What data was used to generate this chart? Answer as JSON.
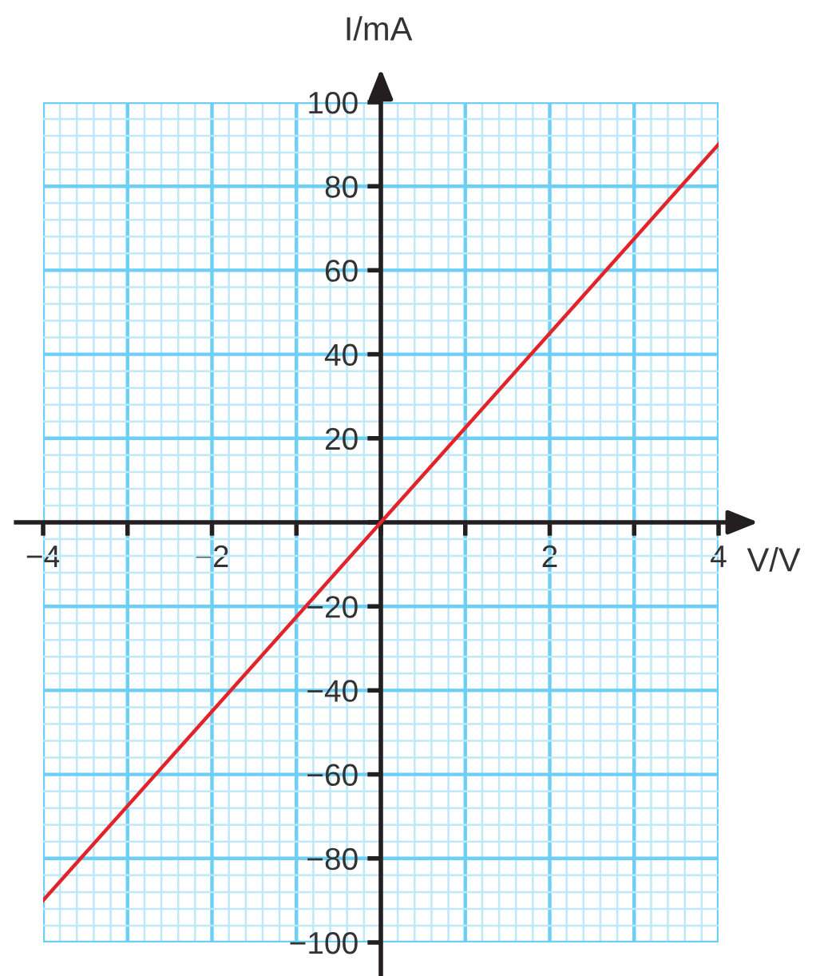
{
  "chart_data": {
    "type": "line",
    "xlabel": "V/V",
    "ylabel": "I/mA",
    "x": [
      -4,
      0,
      4
    ],
    "series": [
      {
        "color": "#e3232a",
        "values": [
          -90,
          0,
          90
        ]
      }
    ],
    "xlim": [
      -4,
      4
    ],
    "ylim": [
      -100,
      100
    ],
    "xticks": [
      {
        "value": -4,
        "label": "−4"
      },
      {
        "value": -3.8,
        "label": null
      },
      {
        "value": -3.6,
        "label": null
      },
      {
        "value": -3.4,
        "label": null
      },
      {
        "value": -3.2,
        "label": null
      },
      {
        "value": -3,
        "label": null
      },
      {
        "value": -2.8,
        "label": null
      },
      {
        "value": -2.6,
        "label": null
      },
      {
        "value": -2.4,
        "label": null
      },
      {
        "value": -2.2,
        "label": null
      },
      {
        "value": -2,
        "label": "−2"
      },
      {
        "value": -1.8,
        "label": null
      },
      {
        "value": -1.6,
        "label": null
      },
      {
        "value": -1.4,
        "label": null
      },
      {
        "value": -1.2,
        "label": null
      },
      {
        "value": -1,
        "label": null
      },
      {
        "value": -0.8,
        "label": null
      },
      {
        "value": -0.6,
        "label": null
      },
      {
        "value": -0.4,
        "label": null
      },
      {
        "value": -0.2,
        "label": null
      },
      {
        "value": 0,
        "label": null
      },
      {
        "value": 0.2,
        "label": null
      },
      {
        "value": 0.4,
        "label": null
      },
      {
        "value": 0.6,
        "label": null
      },
      {
        "value": 0.8,
        "label": null
      },
      {
        "value": 1,
        "label": null
      },
      {
        "value": 1.2,
        "label": null
      },
      {
        "value": 1.4,
        "label": null
      },
      {
        "value": 1.6,
        "label": null
      },
      {
        "value": 1.8,
        "label": null
      },
      2,
      {
        "value": 2.2,
        "label": null
      },
      {
        "value": 2.4,
        "label": null
      },
      {
        "value": 2.6,
        "label": null
      },
      {
        "value": 2.8,
        "label": null
      },
      {
        "value": 3,
        "label": null
      },
      {
        "value": 3.2,
        "label": null
      },
      {
        "value": 3.4,
        "label": null
      },
      {
        "value": 3.6,
        "label": null
      },
      {
        "value": 3.8,
        "label": null
      },
      4
    ],
    "yticks": [
      {
        "value": -100,
        "label": "−100"
      },
      {
        "value": -96,
        "label": null
      },
      {
        "value": -92,
        "label": null
      },
      {
        "value": -88,
        "label": null
      },
      {
        "value": -84,
        "label": null
      },
      {
        "value": -80,
        "label": "−80"
      },
      {
        "value": -76,
        "label": null
      },
      {
        "value": -72,
        "label": null
      },
      {
        "value": -68,
        "label": null
      },
      {
        "value": -64,
        "label": null
      },
      {
        "value": -60,
        "label": "−60"
      },
      {
        "value": -56,
        "label": null
      },
      {
        "value": -52,
        "label": null
      },
      {
        "value": -48,
        "label": null
      },
      {
        "value": -44,
        "label": null
      },
      {
        "value": -40,
        "label": "−40"
      },
      {
        "value": -36,
        "label": null
      },
      {
        "value": -32,
        "label": null
      },
      {
        "value": -28,
        "label": null
      },
      {
        "value": -24,
        "label": null
      },
      {
        "value": -20,
        "label": "−20"
      },
      {
        "value": -16,
        "label": null
      },
      {
        "value": -12,
        "label": null
      },
      {
        "value": -8,
        "label": null
      },
      {
        "value": -4,
        "label": null
      },
      {
        "value": 0,
        "label": null
      },
      {
        "value": 4,
        "label": null
      },
      {
        "value": 8,
        "label": null
      },
      {
        "value": 12,
        "label": null
      },
      {
        "value": 16,
        "label": null
      },
      20,
      {
        "value": 24,
        "label": null
      },
      {
        "value": 28,
        "label": null
      },
      {
        "value": 32,
        "label": null
      },
      {
        "value": 36,
        "label": null
      },
      40,
      {
        "value": 44,
        "label": null
      },
      {
        "value": 48,
        "label": null
      },
      {
        "value": 52,
        "label": null
      },
      {
        "value": 56,
        "label": null
      },
      60,
      {
        "value": 64,
        "label": null
      },
      {
        "value": 68,
        "label": null
      },
      {
        "value": 72,
        "label": null
      },
      {
        "value": 76,
        "label": null
      },
      80,
      {
        "value": 84,
        "label": null
      },
      {
        "value": 88,
        "label": null
      },
      {
        "value": 92,
        "label": null
      },
      {
        "value": 96,
        "label": null
      },
      100
    ],
    "grid": true,
    "line_style": "solid"
  }
}
